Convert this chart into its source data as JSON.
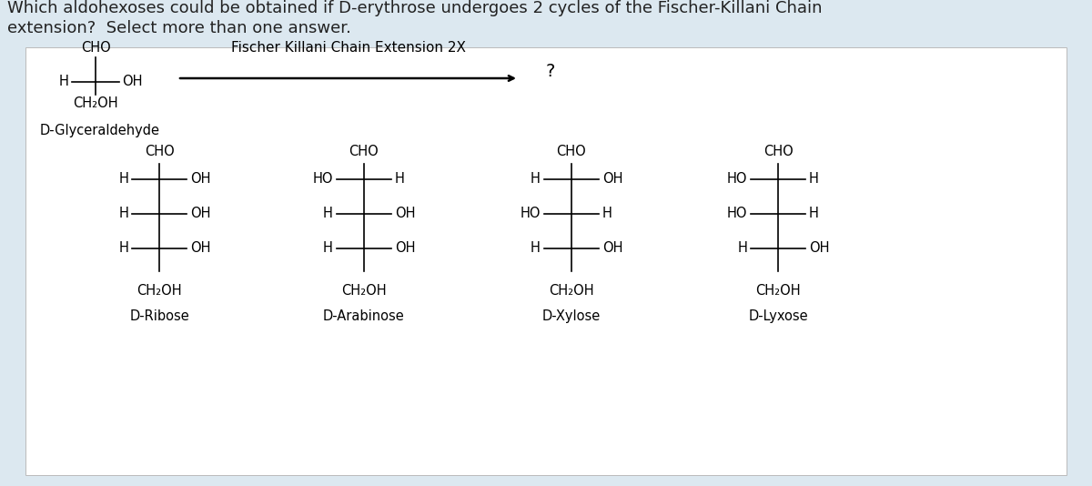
{
  "bg_color": "#dce8f0",
  "panel_bg": "#ffffff",
  "title_line1": "Which aldohexoses could be obtained if D-erythrose undergoes 2 cycles of the Fischer-Killani Chain",
  "title_line2": "extension?  Select more than one answer.",
  "title_fontsize": 13.0,
  "title_color": "#222222",
  "arrow_label": "Fischer Killani Chain Extension 2X",
  "question_mark": "?",
  "glyceraldehyde_label": "D-Glyceraldehyde",
  "sugars": [
    {
      "name": "D-Ribose",
      "rows": [
        {
          "left": "H",
          "right": "OH"
        },
        {
          "left": "H",
          "right": "OH"
        },
        {
          "left": "H",
          "right": "OH"
        }
      ]
    },
    {
      "name": "D-Arabinose",
      "rows": [
        {
          "left": "HO",
          "right": "H"
        },
        {
          "left": "H",
          "right": "OH"
        },
        {
          "left": "H",
          "right": "OH"
        }
      ]
    },
    {
      "name": "D-Xylose",
      "rows": [
        {
          "left": "H",
          "right": "OH"
        },
        {
          "left": "HO",
          "right": "H"
        },
        {
          "left": "H",
          "right": "OH"
        }
      ]
    },
    {
      "name": "D-Lyxose",
      "rows": [
        {
          "left": "HO",
          "right": "H"
        },
        {
          "left": "HO",
          "right": "H"
        },
        {
          "left": "H",
          "right": "OH"
        }
      ]
    }
  ]
}
